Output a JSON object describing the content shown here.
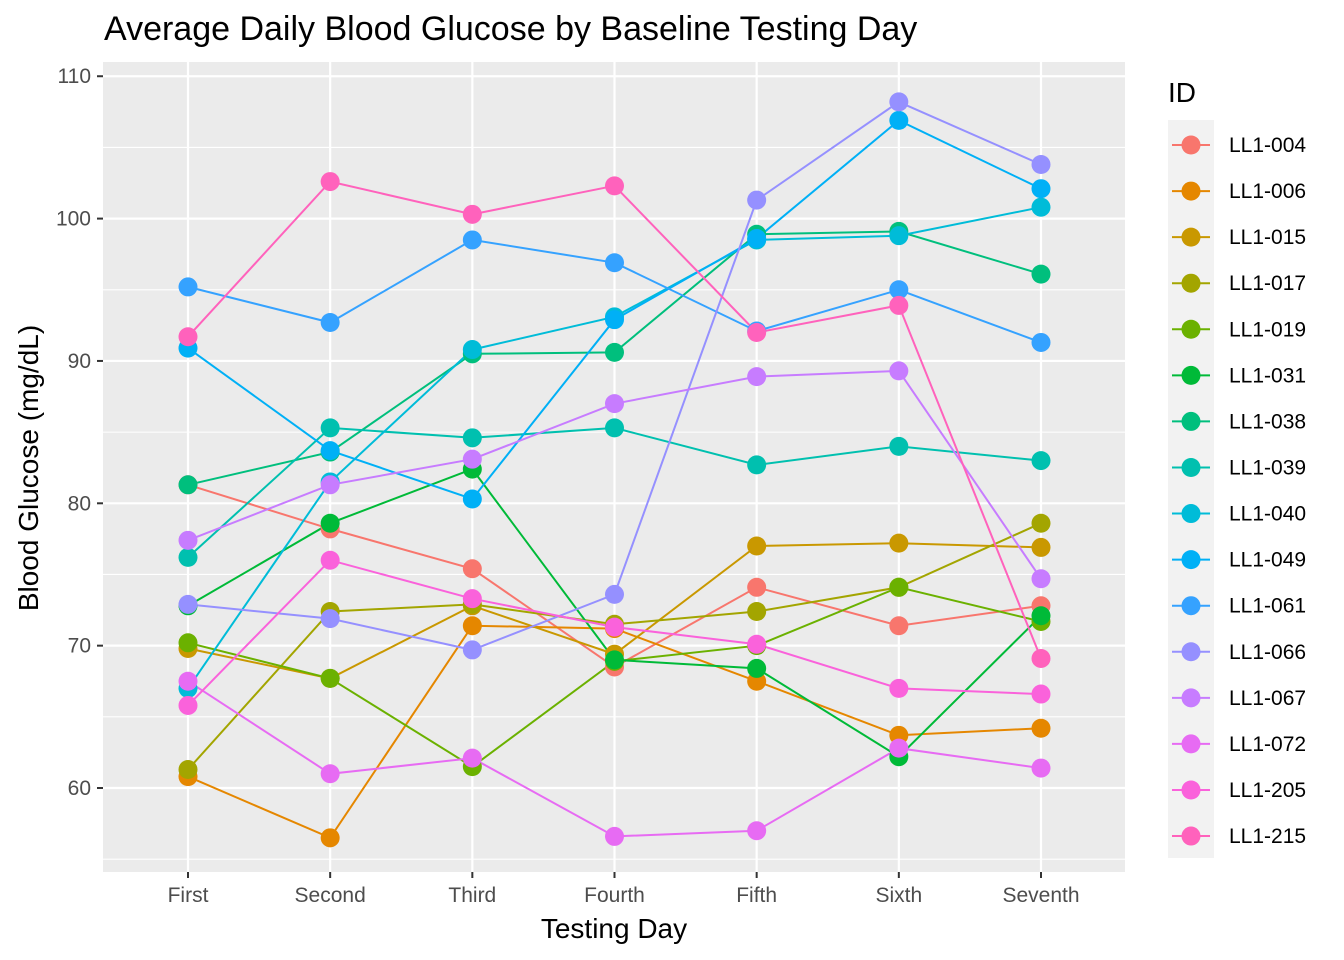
{
  "chart_data": {
    "type": "line",
    "title": "Average Daily Blood Glucose by Baseline Testing Day",
    "xlabel": "Testing Day",
    "ylabel": "Blood Glucose (mg/dL)",
    "categories": [
      "First",
      "Second",
      "Third",
      "Fourth",
      "Fifth",
      "Sixth",
      "Seventh"
    ],
    "yticks": [
      60,
      70,
      80,
      90,
      100,
      110
    ],
    "ylim": [
      54.1,
      111
    ],
    "grid": true,
    "legend": {
      "title": "ID",
      "position": "right"
    },
    "series": [
      {
        "name": "LL1-004",
        "color": "#F8766D",
        "values": [
          81.3,
          78.2,
          75.4,
          68.5,
          74.1,
          71.4,
          72.8
        ]
      },
      {
        "name": "LL1-006",
        "color": "#E58700",
        "values": [
          60.8,
          56.5,
          71.4,
          71.2,
          67.5,
          63.7,
          64.2
        ]
      },
      {
        "name": "LL1-015",
        "color": "#C99800",
        "values": [
          69.8,
          67.7,
          72.8,
          69.4,
          77.0,
          77.2,
          76.9
        ]
      },
      {
        "name": "LL1-017",
        "color": "#A3A500",
        "values": [
          61.3,
          72.4,
          72.9,
          71.5,
          72.4,
          74.1,
          78.6
        ]
      },
      {
        "name": "LL1-019",
        "color": "#6BB100",
        "values": [
          70.2,
          67.7,
          61.5,
          68.9,
          70.0,
          74.1,
          71.7
        ]
      },
      {
        "name": "LL1-031",
        "color": "#00BA38",
        "values": [
          72.8,
          78.6,
          82.4,
          69.0,
          68.4,
          62.2,
          72.1
        ]
      },
      {
        "name": "LL1-038",
        "color": "#00BF7D",
        "values": [
          81.3,
          83.6,
          90.5,
          90.6,
          98.9,
          99.1,
          96.1
        ]
      },
      {
        "name": "LL1-039",
        "color": "#00C0AF",
        "values": [
          76.2,
          85.3,
          84.6,
          85.3,
          82.7,
          84.0,
          83.0
        ]
      },
      {
        "name": "LL1-040",
        "color": "#00BCD8",
        "values": [
          67.0,
          81.5,
          90.8,
          93.1,
          98.5,
          98.8,
          100.8
        ]
      },
      {
        "name": "LL1-049",
        "color": "#00B0F6",
        "values": [
          90.9,
          83.7,
          80.3,
          92.9,
          98.6,
          106.9,
          102.1
        ]
      },
      {
        "name": "LL1-061",
        "color": "#35A2FF",
        "values": [
          95.2,
          92.7,
          98.5,
          96.9,
          92.1,
          95.0,
          91.3
        ]
      },
      {
        "name": "LL1-066",
        "color": "#9590FF",
        "values": [
          72.9,
          71.9,
          69.7,
          73.6,
          101.3,
          108.2,
          103.8
        ]
      },
      {
        "name": "LL1-067",
        "color": "#C77CFF",
        "values": [
          77.4,
          81.3,
          83.1,
          87.0,
          88.9,
          89.3,
          74.7
        ]
      },
      {
        "name": "LL1-072",
        "color": "#E76BF3",
        "values": [
          67.5,
          61.0,
          62.1,
          56.6,
          57.0,
          62.8,
          61.4
        ]
      },
      {
        "name": "LL1-205",
        "color": "#FA62DB",
        "values": [
          65.8,
          76.0,
          73.3,
          71.3,
          70.1,
          67.0,
          66.6
        ]
      },
      {
        "name": "LL1-215",
        "color": "#FF62BC",
        "values": [
          91.7,
          102.6,
          100.3,
          102.3,
          92.0,
          93.9,
          69.1
        ]
      }
    ]
  }
}
